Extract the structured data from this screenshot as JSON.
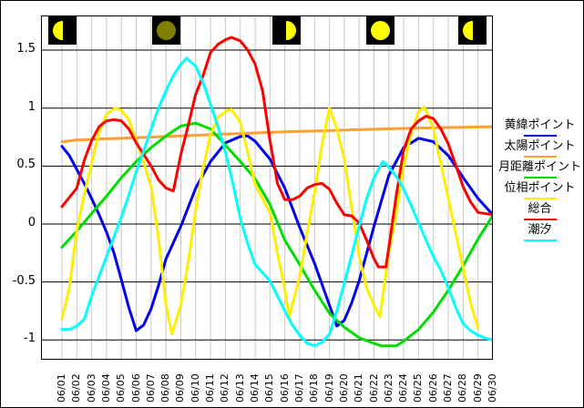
{
  "chart_data": {
    "type": "line",
    "title": "",
    "xlabel": "",
    "ylabel": "",
    "x_axis": {
      "tick_labels": [
        "06/01",
        "06/02",
        "06/03",
        "06/04",
        "06/05",
        "06/06",
        "06/07",
        "06/08",
        "06/09",
        "06/10",
        "06/11",
        "06/12",
        "06/13",
        "06/14",
        "06/15",
        "06/16",
        "06/17",
        "06/18",
        "06/19",
        "06/20",
        "06/21",
        "06/22",
        "06/23",
        "06/24",
        "06/25",
        "06/26",
        "06/27",
        "06/28",
        "06/29",
        "06/30"
      ],
      "days": 30
    },
    "y_axis": {
      "tick_labels": [
        "1.5",
        "1",
        "0.5",
        "0",
        "-0.5",
        "-1"
      ],
      "ticks": [
        1.5,
        1,
        0.5,
        0,
        -0.5,
        -1
      ],
      "range_shown": [
        -1.16,
        1.79
      ]
    },
    "grid": {
      "vertical": "per-day",
      "horizontal": "every 0.5"
    },
    "legend_position": "right",
    "series": [
      {
        "name": "黄緯ポイント",
        "color": "#0000ee",
        "x": [
          1,
          1.5,
          2,
          2.5,
          3,
          3.5,
          4,
          4.5,
          5,
          5.5,
          6,
          6.5,
          7,
          7.5,
          8,
          9,
          10,
          11,
          12,
          13,
          13.5,
          14,
          15,
          16,
          17,
          18,
          19,
          19.5,
          20,
          20.5,
          21,
          22,
          23,
          24,
          25,
          26,
          27,
          28,
          29,
          30
        ],
        "y": [
          0.67,
          0.59,
          0.47,
          0.35,
          0.22,
          0.08,
          -0.07,
          -0.25,
          -0.48,
          -0.72,
          -0.92,
          -0.87,
          -0.73,
          -0.53,
          -0.3,
          -0.02,
          0.31,
          0.54,
          0.7,
          0.755,
          0.76,
          0.715,
          0.56,
          0.31,
          -0.03,
          -0.34,
          -0.7,
          -0.88,
          -0.83,
          -0.68,
          -0.49,
          -0.02,
          0.42,
          0.66,
          0.74,
          0.71,
          0.59,
          0.4,
          0.22,
          0.08
        ]
      },
      {
        "name": "太陽ポイント",
        "color": "#ff9f33",
        "x": [
          1,
          2,
          5,
          8,
          12,
          16,
          20,
          24,
          27,
          30
        ],
        "y": [
          0.71,
          0.725,
          0.74,
          0.755,
          0.775,
          0.795,
          0.81,
          0.825,
          0.833,
          0.84
        ]
      },
      {
        "name": "月距離ポイント",
        "color": "#00dd00",
        "x": [
          1,
          2,
          3,
          4,
          5,
          6,
          7,
          8,
          9,
          10,
          11,
          12,
          13,
          14,
          15,
          16,
          17,
          18,
          19,
          20,
          21,
          22,
          22.5,
          23.5,
          24,
          25,
          26,
          27,
          28,
          29,
          30
        ],
        "y": [
          -0.2,
          -0.06,
          0.09,
          0.24,
          0.4,
          0.54,
          0.66,
          0.76,
          0.845,
          0.87,
          0.82,
          0.68,
          0.54,
          0.39,
          0.17,
          -0.14,
          -0.35,
          -0.57,
          -0.77,
          -0.89,
          -0.98,
          -1.03,
          -1.05,
          -1.05,
          -1.01,
          -0.91,
          -0.76,
          -0.57,
          -0.36,
          -0.13,
          0.075
        ]
      },
      {
        "name": "位相ポイント",
        "color": "#ffee00",
        "x": [
          1,
          1.5,
          2,
          2.5,
          3,
          3.5,
          4,
          4.6,
          5,
          5.5,
          6,
          6.5,
          7,
          7.5,
          8,
          8.4,
          9,
          9.5,
          10,
          10.5,
          11,
          11.5,
          12,
          12.4,
          13,
          13.5,
          14,
          15,
          15.5,
          16,
          16.3,
          17,
          17.5,
          18,
          18.5,
          19,
          19.5,
          20,
          20.5,
          21,
          21.5,
          22,
          22.4,
          23,
          23.5,
          24,
          24.5,
          25,
          25.4,
          26,
          26.5,
          27,
          27.5,
          28,
          28.5,
          29
        ],
        "y": [
          -0.82,
          -0.55,
          -0.05,
          0.25,
          0.53,
          0.79,
          0.95,
          1.0,
          0.98,
          0.9,
          0.72,
          0.53,
          0.32,
          -0.12,
          -0.7,
          -0.95,
          -0.7,
          -0.33,
          0.12,
          0.48,
          0.77,
          0.92,
          0.97,
          0.99,
          0.88,
          0.62,
          0.34,
          0.1,
          -0.25,
          -0.56,
          -0.8,
          -0.45,
          -0.08,
          0.27,
          0.68,
          1.0,
          0.82,
          0.56,
          0.14,
          -0.28,
          -0.55,
          -0.7,
          -0.8,
          -0.25,
          0.1,
          0.5,
          0.78,
          0.97,
          1.01,
          0.82,
          0.52,
          0.22,
          -0.08,
          -0.38,
          -0.68,
          -0.9
        ]
      },
      {
        "name": "総合",
        "color": "#ff0000",
        "x": [
          1,
          2,
          2.5,
          3,
          3.5,
          4,
          4.5,
          5,
          5.5,
          6,
          6.5,
          7,
          7.5,
          8,
          8.5,
          9,
          9.5,
          10,
          10.5,
          11,
          11.5,
          12,
          12.4,
          13,
          13.5,
          14,
          14.5,
          15,
          15.5,
          16,
          16.5,
          17,
          17.5,
          18,
          18.5,
          19,
          19.5,
          20,
          20.5,
          21,
          21.5,
          22,
          22.3,
          22.8,
          23,
          23.5,
          24,
          24.5,
          25,
          25.5,
          26,
          26.5,
          27,
          27.5,
          28,
          28.5,
          29,
          30
        ],
        "y": [
          0.15,
          0.31,
          0.55,
          0.72,
          0.84,
          0.89,
          0.9,
          0.89,
          0.82,
          0.7,
          0.6,
          0.5,
          0.38,
          0.31,
          0.285,
          0.6,
          0.85,
          1.12,
          1.28,
          1.48,
          1.55,
          1.59,
          1.61,
          1.58,
          1.5,
          1.38,
          1.15,
          0.72,
          0.35,
          0.21,
          0.21,
          0.24,
          0.31,
          0.34,
          0.35,
          0.3,
          0.18,
          0.08,
          0.07,
          0.01,
          -0.14,
          -0.3,
          -0.37,
          -0.37,
          -0.2,
          0.25,
          0.64,
          0.82,
          0.89,
          0.93,
          0.91,
          0.82,
          0.69,
          0.51,
          0.32,
          0.19,
          0.1,
          0.08
        ]
      },
      {
        "name": "潮汐",
        "color": "#00ffff",
        "x": [
          1,
          1.5,
          2,
          2.5,
          3,
          3.5,
          4,
          4.5,
          5,
          5.5,
          6,
          6.5,
          7,
          7.5,
          8,
          8.5,
          9,
          9.4,
          10,
          10.5,
          11,
          11.5,
          12,
          12.5,
          13,
          13.5,
          14,
          14.5,
          15,
          15.5,
          16,
          16.5,
          17,
          17.5,
          18,
          18.5,
          19,
          19.5,
          20,
          20.5,
          21,
          21.5,
          22,
          22.6,
          23,
          23.5,
          24,
          24.5,
          25,
          25.5,
          26,
          26.5,
          27,
          27.5,
          28,
          28.5,
          29,
          29.5,
          30
        ],
        "y": [
          -0.91,
          -0.91,
          -0.88,
          -0.82,
          -0.62,
          -0.45,
          -0.28,
          -0.11,
          0.06,
          0.25,
          0.45,
          0.63,
          0.82,
          1.0,
          1.15,
          1.28,
          1.38,
          1.43,
          1.36,
          1.22,
          1.03,
          0.84,
          0.62,
          0.35,
          0.05,
          -0.17,
          -0.35,
          -0.42,
          -0.49,
          -0.62,
          -0.75,
          -0.87,
          -0.96,
          -1.03,
          -1.05,
          -1.02,
          -0.95,
          -0.75,
          -0.51,
          -0.27,
          -0.02,
          0.22,
          0.4,
          0.54,
          0.49,
          0.41,
          0.3,
          0.16,
          0.01,
          -0.14,
          -0.28,
          -0.4,
          -0.55,
          -0.72,
          -0.86,
          -0.92,
          -0.96,
          -0.985,
          -1.0
        ]
      }
    ],
    "moon_icons": [
      {
        "day": 1.0,
        "phase": "last_quarter"
      },
      {
        "day": 8.05,
        "phase": "new"
      },
      {
        "day": 16.1,
        "phase": "first_quarter"
      },
      {
        "day": 22.45,
        "phase": "full"
      },
      {
        "day": 28.6,
        "phase": "last_quarter"
      }
    ]
  },
  "legend": {
    "entries": [
      {
        "label": "黄緯ポイント",
        "color": "#0000ee"
      },
      {
        "label": "太陽ポイント",
        "color": "#ff9f33"
      },
      {
        "label": "月距離ポイント",
        "color": "#00dd00"
      },
      {
        "label": "位相ポイント",
        "color": "#ffee00"
      },
      {
        "label": "総合",
        "color": "#ff0000"
      },
      {
        "label": "潮汐",
        "color": "#00ffff"
      }
    ]
  },
  "colors": {
    "background": "#ffffff",
    "plot_border": "#000000",
    "grid_vertical": "#c9c9c9",
    "grid_horizontal": "#000000",
    "moon_box": "#000000",
    "moon_lit": "#ffff00",
    "moon_new": "#808000"
  }
}
